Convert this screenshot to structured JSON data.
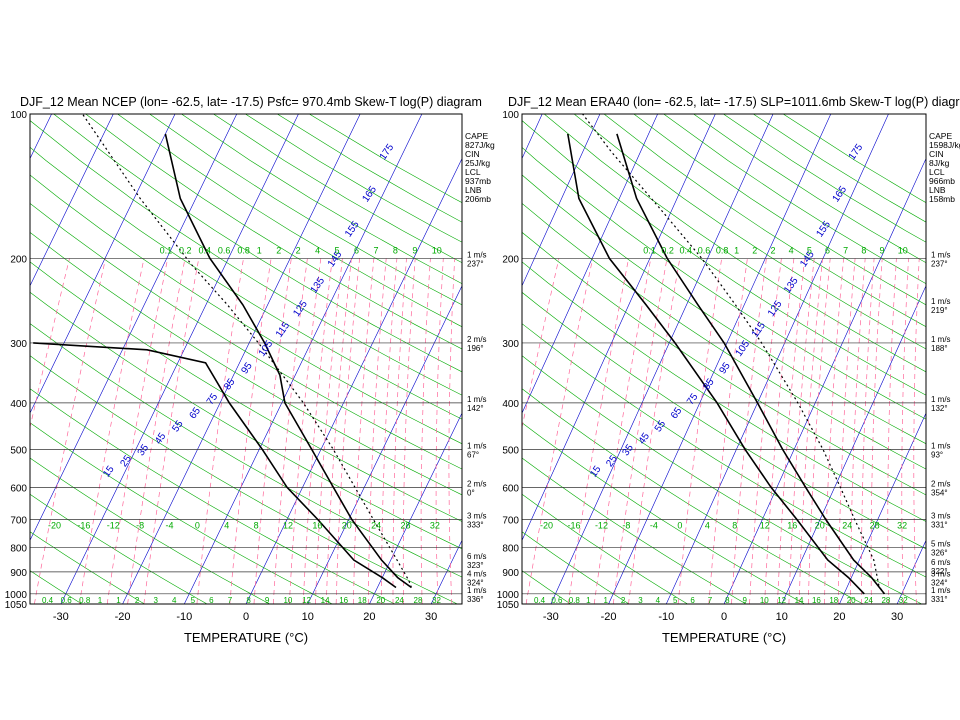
{
  "x_axis_title": "TEMPERATURE (°C)",
  "x_ticks": [
    -30,
    -20,
    -10,
    0,
    10,
    20,
    30
  ],
  "y_ticks": [
    100,
    200,
    300,
    400,
    500,
    600,
    700,
    800,
    900,
    1000,
    1050
  ],
  "mixing_ratio_labels": [
    "0.1",
    "0.2",
    "0.4",
    "0.6",
    "0.8",
    "1",
    "2",
    "2",
    "4",
    "5",
    "6",
    "7",
    "8",
    "9",
    "10"
  ],
  "mixing_ratio_bottom_labels": [
    "0.4",
    "0.6",
    "0.8",
    "1",
    "1",
    "2",
    "3",
    "4",
    "5",
    "6",
    "7",
    "8",
    "9",
    "10",
    "12",
    "14",
    "16",
    "18",
    "20",
    "24",
    "28",
    "32"
  ],
  "temp_labels_700": [
    "-20",
    "-16",
    "-12",
    "-8",
    "-4",
    "0",
    "4",
    "8",
    "12",
    "16",
    "20",
    "24",
    "28",
    "32"
  ],
  "colors": {
    "isotherm": "#0000cc",
    "dry_adiabat": "#00aa00",
    "mixing_ratio": "#ff6699",
    "isobar": "#333333"
  },
  "chart_data": [
    {
      "type": "line",
      "title": "DJF_12 Mean NCEP   (lon= -62.5, lat= -17.5)  Psfc= 970.4mb Skew-T log(P) diagram",
      "xlabel": "TEMPERATURE (°C)",
      "ylabel": "",
      "xlim": [
        -35,
        35
      ],
      "ylim": [
        1050,
        100
      ],
      "indices": [
        {
          "name": "CAPE",
          "value": "827J/kg"
        },
        {
          "name": "CIN",
          "value": "25J/kg"
        },
        {
          "name": "LCL",
          "value": "937mb"
        },
        {
          "name": "LNB",
          "value": "206mb"
        }
      ],
      "winds": [
        {
          "p": 200,
          "speed": "1 m/s",
          "dir": "237°"
        },
        {
          "p": 300,
          "speed": "2 m/s",
          "dir": "196°"
        },
        {
          "p": 400,
          "speed": "1 m/s",
          "dir": "142°"
        },
        {
          "p": 500,
          "speed": "1 m/s",
          "dir": "67°"
        },
        {
          "p": 600,
          "speed": "2 m/s",
          "dir": "0°"
        },
        {
          "p": 700,
          "speed": "3 m/s",
          "dir": "333°"
        },
        {
          "p": 850,
          "speed": "6 m/s",
          "dir": "323°"
        },
        {
          "p": 925,
          "speed": "4 m/s",
          "dir": "324°"
        },
        {
          "p": 1000,
          "speed": "1 m/s",
          "dir": "336°"
        }
      ],
      "series": [
        {
          "name": "temperature",
          "style": "solid",
          "points": [
            [
              970,
              25.5
            ],
            [
              925,
              22.5
            ],
            [
              850,
              18.5
            ],
            [
              700,
              10.5
            ],
            [
              600,
              5.0
            ],
            [
              500,
              -1.5
            ],
            [
              400,
              -9.5
            ],
            [
              350,
              -12.5
            ],
            [
              300,
              -17.5
            ],
            [
              250,
              -24.0
            ],
            [
              200,
              -33.0
            ],
            [
              150,
              -42.5
            ],
            [
              110,
              -50.0
            ]
          ]
        },
        {
          "name": "dewpoint",
          "style": "solid",
          "points": [
            [
              970,
              23.0
            ],
            [
              925,
              20.0
            ],
            [
              850,
              14.0
            ],
            [
              700,
              5.0
            ],
            [
              600,
              -2.5
            ],
            [
              500,
              -9.5
            ],
            [
              400,
              -18.5
            ],
            [
              330,
              -25.5
            ],
            [
              310,
              -36.0
            ],
            [
              300,
              -55.0
            ]
          ]
        },
        {
          "name": "parcel",
          "style": "dotted",
          "points": [
            [
              970,
              25.5
            ],
            [
              937,
              24.5
            ],
            [
              850,
              21.0
            ],
            [
              700,
              14.0
            ],
            [
              600,
              8.5
            ],
            [
              500,
              2.0
            ],
            [
              400,
              -6.5
            ],
            [
              300,
              -18.5
            ],
            [
              250,
              -26.5
            ],
            [
              206,
              -35.5
            ],
            [
              150,
              -49.0
            ],
            [
              100,
              -65.0
            ]
          ]
        }
      ]
    },
    {
      "type": "line",
      "title": "DJF_12 Mean ERA40   (lon= -62.5, lat= -17.5)  SLP=1011.6mb Skew-T log(P) diagram",
      "xlabel": "TEMPERATURE (°C)",
      "ylabel": "",
      "xlim": [
        -35,
        35
      ],
      "ylim": [
        1050,
        100
      ],
      "indices": [
        {
          "name": "CAPE",
          "value": "1598J/kg"
        },
        {
          "name": "CIN",
          "value": "8J/kg"
        },
        {
          "name": "LCL",
          "value": "966mb"
        },
        {
          "name": "LNB",
          "value": "158mb"
        }
      ],
      "winds": [
        {
          "p": 200,
          "speed": "1 m/s",
          "dir": "237°"
        },
        {
          "p": 250,
          "speed": "1 m/s",
          "dir": "219°"
        },
        {
          "p": 300,
          "speed": "1 m/s",
          "dir": "188°"
        },
        {
          "p": 400,
          "speed": "1 m/s",
          "dir": "132°"
        },
        {
          "p": 500,
          "speed": "1 m/s",
          "dir": "93°"
        },
        {
          "p": 600,
          "speed": "2 m/s",
          "dir": "354°"
        },
        {
          "p": 700,
          "speed": "3 m/s",
          "dir": "331°"
        },
        {
          "p": 800,
          "speed": "5 m/s",
          "dir": "326°"
        },
        {
          "p": 875,
          "speed": "6 m/s",
          "dir": "322°"
        },
        {
          "p": 925,
          "speed": "3 m/s",
          "dir": "324°"
        },
        {
          "p": 1000,
          "speed": "1 m/s",
          "dir": "331°"
        }
      ],
      "series": [
        {
          "name": "temperature",
          "style": "solid",
          "points": [
            [
              1000,
              27.0
            ],
            [
              925,
              23.5
            ],
            [
              850,
              19.0
            ],
            [
              700,
              11.0
            ],
            [
              600,
              5.0
            ],
            [
              500,
              -2.0
            ],
            [
              400,
              -10.0
            ],
            [
              300,
              -20.5
            ],
            [
              250,
              -28.0
            ],
            [
              200,
              -37.0
            ],
            [
              150,
              -47.0
            ],
            [
              110,
              -55.5
            ]
          ]
        },
        {
          "name": "dewpoint",
          "style": "solid",
          "points": [
            [
              1000,
              23.5
            ],
            [
              925,
              19.5
            ],
            [
              850,
              14.5
            ],
            [
              700,
              6.0
            ],
            [
              600,
              -1.0
            ],
            [
              500,
              -8.5
            ],
            [
              400,
              -17.0
            ],
            [
              300,
              -29.0
            ],
            [
              250,
              -37.0
            ],
            [
              200,
              -47.0
            ],
            [
              150,
              -57.0
            ],
            [
              110,
              -64.0
            ]
          ]
        },
        {
          "name": "parcel",
          "style": "dotted",
          "points": [
            [
              1000,
              27.0
            ],
            [
              966,
              25.5
            ],
            [
              850,
              22.5
            ],
            [
              700,
              16.0
            ],
            [
              600,
              11.0
            ],
            [
              500,
              5.0
            ],
            [
              400,
              -3.0
            ],
            [
              300,
              -14.0
            ],
            [
              250,
              -21.5
            ],
            [
              200,
              -31.0
            ],
            [
              158,
              -42.0
            ],
            [
              120,
              -55.0
            ],
            [
              100,
              -63.0
            ]
          ]
        }
      ]
    }
  ]
}
